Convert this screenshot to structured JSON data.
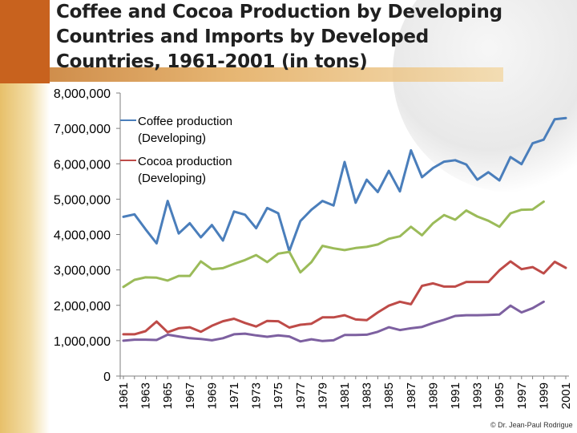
{
  "slide": {
    "title": "Coffee and Cocoa Production by Developing Countries and Imports by Developed Countries, 1961-2001 (in tons)",
    "credit": "© Dr. Jean-Paul Rodrigue"
  },
  "colors": {
    "coffee_production": "#4a7ebb",
    "cocoa_production": "#be4b48",
    "green_series": "#9bbb59",
    "purple_series": "#7d60a0",
    "accent_orange": "#c8621e"
  },
  "chart_data": {
    "type": "line",
    "title": "Coffee and Cocoa Production by Developing Countries and Imports by Developed Countries, 1961-2001 (in tons)",
    "xlabel": "",
    "ylabel": "",
    "ylim": [
      0,
      8000000
    ],
    "y_ticks": [
      "0",
      "1,000,000",
      "2,000,000",
      "3,000,000",
      "4,000,000",
      "5,000,000",
      "6,000,000",
      "7,000,000",
      "8,000,000"
    ],
    "x": [
      1961,
      1962,
      1963,
      1964,
      1965,
      1966,
      1967,
      1968,
      1969,
      1970,
      1971,
      1972,
      1973,
      1974,
      1975,
      1976,
      1977,
      1978,
      1979,
      1980,
      1981,
      1982,
      1983,
      1984,
      1985,
      1986,
      1987,
      1988,
      1989,
      1990,
      1991,
      1992,
      1993,
      1994,
      1995,
      1996,
      1997,
      1998,
      1999,
      2000,
      2001
    ],
    "x_tick_labels": [
      "1961",
      "1963",
      "1965",
      "1967",
      "1969",
      "1971",
      "1973",
      "1975",
      "1977",
      "1979",
      "1981",
      "1983",
      "1985",
      "1987",
      "1989",
      "1991",
      "1993",
      "1995",
      "1997",
      "1999",
      "2001"
    ],
    "legend_position": "top-left",
    "series": [
      {
        "name": "Coffee production (Developing)",
        "color": "#4a7ebb",
        "values": [
          4500000,
          4570000,
          4150000,
          3750000,
          4950000,
          4030000,
          4320000,
          3920000,
          4270000,
          3830000,
          4650000,
          4560000,
          4180000,
          4750000,
          4600000,
          3530000,
          4380000,
          4700000,
          4950000,
          4820000,
          6050000,
          4900000,
          5550000,
          5200000,
          5800000,
          5220000,
          6380000,
          5620000,
          5880000,
          6060000,
          6100000,
          5980000,
          5550000,
          5760000,
          5530000,
          6190000,
          5990000,
          6580000,
          6680000,
          7260000,
          7290000
        ]
      },
      {
        "name": "Cocoa production (Developing)",
        "color": "#be4b48",
        "values": [
          1180000,
          1180000,
          1270000,
          1540000,
          1240000,
          1350000,
          1380000,
          1250000,
          1420000,
          1550000,
          1620000,
          1500000,
          1400000,
          1560000,
          1550000,
          1370000,
          1450000,
          1480000,
          1660000,
          1660000,
          1720000,
          1600000,
          1580000,
          1800000,
          1990000,
          2100000,
          2030000,
          2550000,
          2620000,
          2530000,
          2530000,
          2660000,
          2660000,
          2660000,
          2990000,
          3240000,
          3020000,
          3080000,
          2900000,
          3230000,
          3060000
        ]
      },
      {
        "name": "",
        "color": "#9bbb59",
        "values": [
          2520000,
          2720000,
          2790000,
          2780000,
          2700000,
          2830000,
          2830000,
          3240000,
          3020000,
          3050000,
          3170000,
          3280000,
          3420000,
          3220000,
          3460000,
          3510000,
          2930000,
          3220000,
          3680000,
          3610000,
          3560000,
          3620000,
          3650000,
          3720000,
          3880000,
          3950000,
          4220000,
          3980000,
          4320000,
          4550000,
          4420000,
          4680000,
          4510000,
          4390000,
          4220000,
          4600000,
          4700000,
          4710000,
          4930000,
          null,
          null
        ]
      },
      {
        "name": "",
        "color": "#7d60a0",
        "values": [
          1000000,
          1030000,
          1030000,
          1020000,
          1170000,
          1120000,
          1070000,
          1050000,
          1010000,
          1070000,
          1180000,
          1200000,
          1150000,
          1110000,
          1150000,
          1120000,
          980000,
          1040000,
          990000,
          1010000,
          1160000,
          1160000,
          1170000,
          1250000,
          1380000,
          1300000,
          1350000,
          1390000,
          1500000,
          1590000,
          1700000,
          1720000,
          1720000,
          1730000,
          1740000,
          1990000,
          1800000,
          1920000,
          2100000,
          null,
          null
        ]
      }
    ]
  }
}
